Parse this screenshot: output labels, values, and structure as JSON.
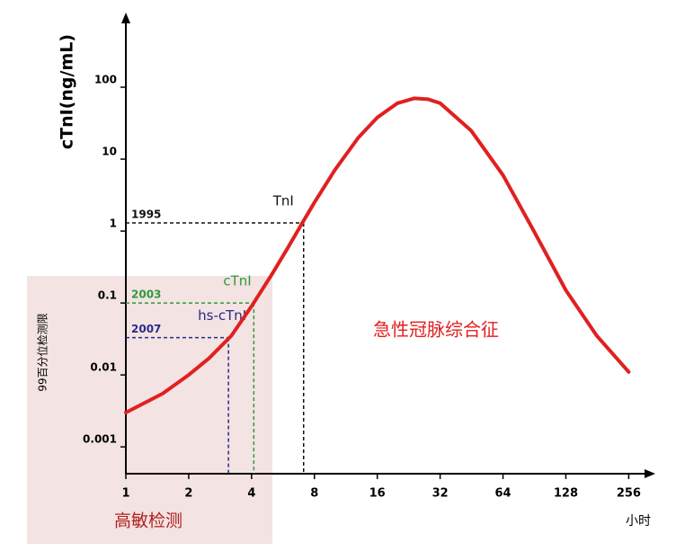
{
  "chart_data": {
    "type": "line",
    "y_label": "cTnI(ng/mL)",
    "x_label": "小时",
    "side_label": "99百分位检测限",
    "region_label": "高敏检测",
    "annotation": "急性冠脉综合征",
    "log_x": true,
    "log_y": true,
    "xlim": [
      1,
      330
    ],
    "ylim": [
      0.0004,
      1000
    ],
    "xticks": [
      1,
      2,
      4,
      8,
      16,
      32,
      64,
      128,
      256
    ],
    "yticks": [
      0.001,
      0.01,
      0.1,
      1,
      10,
      100
    ],
    "series": [
      {
        "color": "#e02020",
        "x": [
          1,
          1.5,
          2,
          2.5,
          3.2,
          4,
          5,
          6,
          7,
          8,
          10,
          13,
          16,
          20,
          24,
          28,
          32,
          45,
          64,
          90,
          128,
          180,
          256
        ],
        "values": [
          0.003,
          0.0055,
          0.01,
          0.017,
          0.035,
          0.09,
          0.25,
          0.6,
          1.3,
          2.5,
          7,
          20,
          38,
          60,
          70,
          68,
          60,
          25,
          6,
          1,
          0.15,
          0.035,
          0.011
        ]
      }
    ],
    "thresholds": [
      {
        "year": "1995",
        "assay": "TnI",
        "x": 7.1,
        "y": 1.3,
        "color": "#111111"
      },
      {
        "year": "2003",
        "assay": "cTnI",
        "x": 4.1,
        "y": 0.1,
        "color": "#2e9a3a"
      },
      {
        "year": "2007",
        "assay": "hs-cTnI",
        "x": 3.1,
        "y": 0.033,
        "color": "#2a2a8a"
      }
    ]
  }
}
